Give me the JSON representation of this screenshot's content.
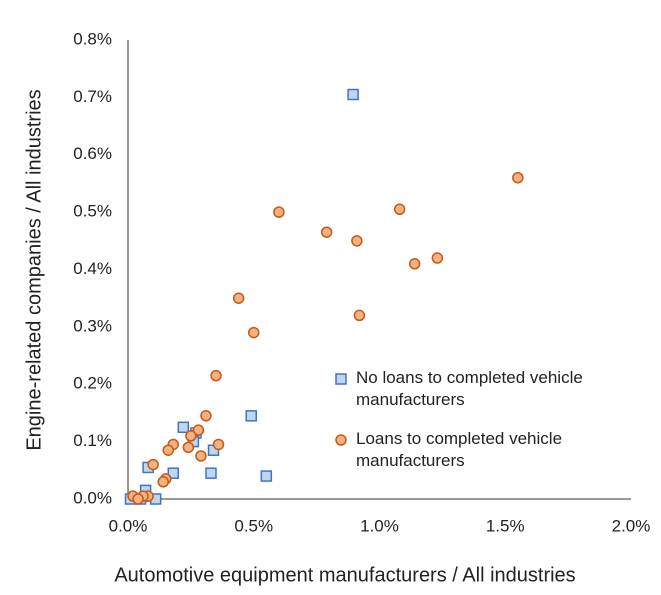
{
  "chart_data": {
    "type": "scatter",
    "x_label": "Automotive equipment manufacturers  / All industries",
    "y_label": "Engine-related companies / All industries",
    "xlim": [
      0,
      2.0
    ],
    "ylim": [
      0,
      0.8
    ],
    "xticks": [
      {
        "value": 0,
        "label": "0.0%"
      },
      {
        "value": 0.5,
        "label": "0.5%"
      },
      {
        "value": 1.0,
        "label": "1.0%"
      },
      {
        "value": 1.5,
        "label": "1.5%"
      },
      {
        "value": 2.0,
        "label": "2.0%"
      }
    ],
    "yticks": [
      {
        "value": 0,
        "label": "0.0%"
      },
      {
        "value": 0.1,
        "label": "0.1%"
      },
      {
        "value": 0.2,
        "label": "0.2%"
      },
      {
        "value": 0.3,
        "label": "0.3%"
      },
      {
        "value": 0.4,
        "label": "0.4%"
      },
      {
        "value": 0.5,
        "label": "0.5%"
      },
      {
        "value": 0.6,
        "label": "0.6%"
      },
      {
        "value": 0.7,
        "label": "0.7%"
      },
      {
        "value": 0.8,
        "label": "0.8%"
      }
    ],
    "series": [
      {
        "name": "No loans to completed vehicle manufacturers",
        "marker": "square",
        "color": "#bdd7ee",
        "edge_color": "#4472c4",
        "x": [
          0.895,
          0.22,
          0.27,
          0.26,
          0.49,
          0.08,
          0.18,
          0.33,
          0.55,
          0.34,
          0.07,
          0.11,
          0.01,
          0.05
        ],
        "values": [
          0.705,
          0.125,
          0.115,
          0.1,
          0.145,
          0.055,
          0.045,
          0.045,
          0.04,
          0.085,
          0.015,
          0.0,
          0.0,
          0.0
        ]
      },
      {
        "name": "Loans to completed vehicle manufacturers",
        "marker": "circle",
        "color": "#f4b183",
        "edge_color": "#c55a11",
        "x": [
          1.55,
          0.6,
          1.08,
          0.79,
          0.91,
          1.23,
          1.14,
          0.44,
          0.5,
          0.92,
          0.35,
          0.31,
          0.28,
          0.25,
          0.18,
          0.36,
          0.16,
          0.24,
          0.29,
          0.1,
          0.15,
          0.14,
          0.08,
          0.02,
          0.06,
          0.04
        ],
        "values": [
          0.56,
          0.5,
          0.505,
          0.465,
          0.45,
          0.42,
          0.41,
          0.35,
          0.29,
          0.32,
          0.215,
          0.145,
          0.12,
          0.11,
          0.095,
          0.095,
          0.085,
          0.09,
          0.075,
          0.06,
          0.035,
          0.03,
          0.005,
          0.005,
          0.005,
          0.0
        ]
      }
    ]
  }
}
